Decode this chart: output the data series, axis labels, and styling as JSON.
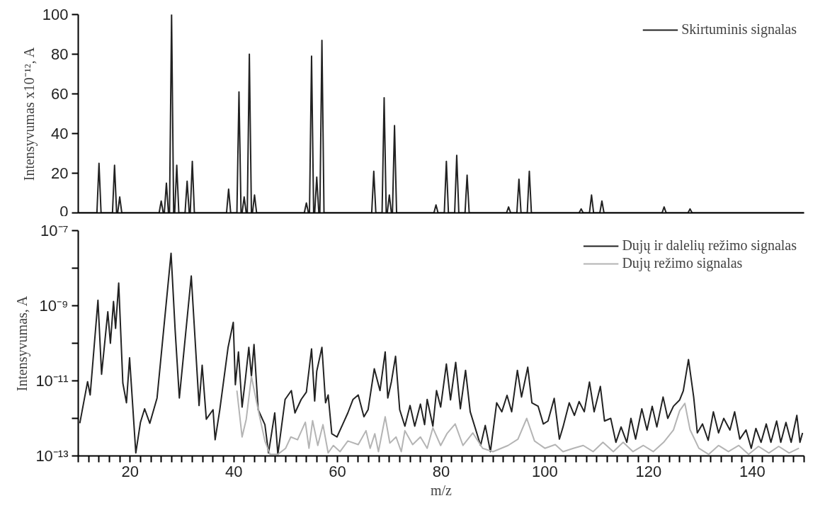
{
  "chart_data": [
    {
      "type": "line",
      "ylabel": "Intensyvumas x10⁻¹², A",
      "xlim": [
        10,
        150
      ],
      "ylim": [
        0,
        100
      ],
      "yticks": [
        0,
        20,
        40,
        60,
        80,
        100
      ],
      "tick_labels": "y",
      "legend": "top right",
      "series": [
        {
          "name": "Skirtuminis signalas",
          "color": "#222222",
          "x": [
            10,
            13.6,
            14,
            14.4,
            16.6,
            17,
            17.4,
            17.6,
            18,
            18.4,
            25.6,
            26,
            26.4,
            26.6,
            27,
            27.4,
            27.6,
            28,
            28.4,
            28.6,
            29,
            29.4,
            30.6,
            31,
            31.4,
            31.6,
            32,
            32.4,
            38.6,
            39,
            39.4,
            40.6,
            41,
            41.4,
            41.6,
            42,
            42.4,
            42.6,
            43,
            43.4,
            43.6,
            44,
            44.4,
            53.6,
            54,
            54.4,
            54.6,
            55,
            55.4,
            55.6,
            56,
            56.4,
            56.6,
            57,
            57.4,
            66.6,
            67,
            67.4,
            68.6,
            69,
            69.4,
            69.6,
            70,
            70.4,
            70.6,
            71,
            71.4,
            78.6,
            79,
            79.4,
            80.6,
            81,
            81.4,
            82.6,
            83,
            83.4,
            84.6,
            85,
            85.4,
            92.6,
            93,
            93.4,
            94.6,
            95,
            95.4,
            96.6,
            97,
            97.4,
            106.6,
            107,
            107.4,
            108.6,
            109,
            109.4,
            110.6,
            111,
            111.4,
            122.6,
            123,
            123.4,
            127.6,
            128,
            128.4,
            150
          ],
          "values": [
            0,
            0,
            25,
            0,
            0,
            24,
            0,
            0,
            8,
            0,
            0,
            6,
            0,
            0,
            15,
            0,
            0,
            100,
            0,
            0,
            24,
            0,
            0,
            16,
            0,
            0,
            26,
            0,
            0,
            12,
            0,
            0,
            61,
            0,
            0,
            8,
            0,
            0,
            80,
            0,
            0,
            9,
            0,
            0,
            5,
            0,
            0,
            79,
            0,
            0,
            18,
            0,
            0,
            87,
            0,
            0,
            21,
            0,
            0,
            58,
            0,
            0,
            9,
            0,
            0,
            44,
            0,
            0,
            4,
            0,
            0,
            26,
            0,
            0,
            29,
            0,
            0,
            19,
            0,
            0,
            3,
            0,
            0,
            17,
            0,
            0,
            21,
            0,
            0,
            2,
            0,
            0,
            9,
            0,
            0,
            6,
            0,
            0,
            3,
            0,
            0,
            2,
            0,
            0
          ]
        }
      ]
    },
    {
      "type": "line",
      "xlabel": "m/z",
      "ylabel": "Intensyvumas, A",
      "log": "y",
      "xlim": [
        10,
        150
      ],
      "ylim": [
        1e-13,
        1e-07
      ],
      "legend": "top right",
      "yticks": [
        {
          "value": 1e-07,
          "label": "10⁻⁷"
        },
        {
          "value": 1e-08,
          "label": null
        },
        {
          "value": 1e-09,
          "label": "10⁻⁹"
        },
        {
          "value": 1e-10,
          "label": null
        },
        {
          "value": 1e-11,
          "label": "10⁻¹¹"
        },
        {
          "value": 1e-12,
          "label": null
        },
        {
          "value": 1e-13,
          "label": "10⁻¹³"
        }
      ],
      "xticks": [
        {
          "value": 10,
          "label": null
        },
        {
          "value": 12,
          "label": null
        },
        {
          "value": 14,
          "label": null
        },
        {
          "value": 16,
          "label": null
        },
        {
          "value": 18,
          "label": null
        },
        20,
        {
          "value": 22,
          "label": null
        },
        {
          "value": 24,
          "label": null
        },
        {
          "value": 26,
          "label": null
        },
        {
          "value": 28,
          "label": null
        },
        {
          "value": 30,
          "label": null
        },
        {
          "value": 32,
          "label": null
        },
        {
          "value": 34,
          "label": null
        },
        {
          "value": 36,
          "label": null
        },
        {
          "value": 38,
          "label": null
        },
        40,
        {
          "value": 42,
          "label": null
        },
        {
          "value": 44,
          "label": null
        },
        {
          "value": 46,
          "label": null
        },
        {
          "value": 48,
          "label": null
        },
        {
          "value": 50,
          "label": null
        },
        {
          "value": 52,
          "label": null
        },
        {
          "value": 54,
          "label": null
        },
        {
          "value": 56,
          "label": null
        },
        {
          "value": 58,
          "label": null
        },
        60,
        {
          "value": 62,
          "label": null
        },
        {
          "value": 64,
          "label": null
        },
        {
          "value": 66,
          "label": null
        },
        {
          "value": 68,
          "label": null
        },
        {
          "value": 70,
          "label": null
        },
        {
          "value": 72,
          "label": null
        },
        {
          "value": 74,
          "label": null
        },
        {
          "value": 76,
          "label": null
        },
        {
          "value": 78,
          "label": null
        },
        80,
        {
          "value": 82,
          "label": null
        },
        {
          "value": 84,
          "label": null
        },
        {
          "value": 86,
          "label": null
        },
        {
          "value": 88,
          "label": null
        },
        {
          "value": 90,
          "label": null
        },
        {
          "value": 92,
          "label": null
        },
        {
          "value": 94,
          "label": null
        },
        {
          "value": 96,
          "label": null
        },
        {
          "value": 98,
          "label": null
        },
        100,
        {
          "value": 102,
          "label": null
        },
        {
          "value": 104,
          "label": null
        },
        {
          "value": 106,
          "label": null
        },
        {
          "value": 108,
          "label": null
        },
        {
          "value": 110,
          "label": null
        },
        {
          "value": 112,
          "label": null
        },
        {
          "value": 114,
          "label": null
        },
        {
          "value": 116,
          "label": null
        },
        {
          "value": 118,
          "label": null
        },
        120,
        {
          "value": 122,
          "label": null
        },
        {
          "value": 124,
          "label": null
        },
        {
          "value": 126,
          "label": null
        },
        {
          "value": 128,
          "label": null
        },
        {
          "value": 130,
          "label": null
        },
        {
          "value": 132,
          "label": null
        },
        {
          "value": 134,
          "label": null
        },
        {
          "value": 136,
          "label": null
        },
        {
          "value": 138,
          "label": null
        },
        140,
        {
          "value": 142,
          "label": null
        },
        {
          "value": 144,
          "label": null
        },
        {
          "value": 146,
          "label": null
        },
        {
          "value": 148,
          "label": null
        },
        {
          "value": 150,
          "label": null
        }
      ],
      "series": [
        {
          "name": "Dujų ir dalelių režimo signalas",
          "color": "#222222",
          "x": [
            10.3,
            11.8,
            12.3,
            13.8,
            14.5,
            15.7,
            16.2,
            16.8,
            17.2,
            17.8,
            18.6,
            19.3,
            19.9,
            21.1,
            22.0,
            22.8,
            23.8,
            25.2,
            27.9,
            28.7,
            29.5,
            31.8,
            33.3,
            33.9,
            34.7,
            36.0,
            36.4,
            37.3,
            38.9,
            39.9,
            40.3,
            40.9,
            41.6,
            42.2,
            42.9,
            43.4,
            43.9,
            44.7,
            46.0,
            46.7,
            47.9,
            48.5,
            49.9,
            51.1,
            51.8,
            53.0,
            54.0,
            55.0,
            55.6,
            56.0,
            57.0,
            57.7,
            58.2,
            58.9,
            59.9,
            61.1,
            62.0,
            63.0,
            64.0,
            65.1,
            65.9,
            67.1,
            68.2,
            69.2,
            69.7,
            70.4,
            71.2,
            72.0,
            73.0,
            74.0,
            74.9,
            76.0,
            76.8,
            77.3,
            78.4,
            79.1,
            79.9,
            81.0,
            81.8,
            82.8,
            83.7,
            84.7,
            85.6,
            87.6,
            88.5,
            89.5,
            90.7,
            91.7,
            92.7,
            93.6,
            94.7,
            95.5,
            96.7,
            97.5,
            98.7,
            99.7,
            100.6,
            101.8,
            102.8,
            103.5,
            104.7,
            105.7,
            106.6,
            107.6,
            108.6,
            109.5,
            110.7,
            111.5,
            112.7,
            113.7,
            114.7,
            115.8,
            116.6,
            117.5,
            118.7,
            119.7,
            120.7,
            121.6,
            122.8,
            123.7,
            124.8,
            126.0,
            126.7,
            127.7,
            128.7,
            129.4,
            130.4,
            131.5,
            132.5,
            133.5,
            134.5,
            135.7,
            136.6,
            137.6,
            138.8,
            139.8,
            140.7,
            141.7,
            142.7,
            143.6,
            144.7,
            145.5,
            146.5,
            147.5,
            148.6,
            149.2,
            149.7
          ],
          "values": [
            7.4e-13,
            9.5e-12,
            4.2e-12,
            1.4e-09,
            1.5e-11,
            6.9e-10,
            1e-10,
            1.3e-09,
            2.5e-10,
            4e-09,
            8.7e-12,
            2.6e-12,
            4.1e-11,
            1.2e-13,
            7.9e-13,
            1.8e-12,
            7.4e-13,
            3.5e-12,
            2.5e-08,
            2.1e-10,
            3.5e-12,
            6.2e-09,
            2.2e-12,
            2.6e-11,
            9.5e-13,
            1.7e-12,
            2.7e-13,
            1.7e-12,
            7.8e-11,
            3.6e-10,
            7.9e-12,
            5.9e-11,
            2e-12,
            1e-11,
            7.8e-11,
            1.3e-11,
            9.3e-11,
            1.7e-12,
            6.8e-13,
            1.2e-13,
            1.4e-12,
            1.1e-13,
            3.2e-12,
            5.5e-12,
            1.4e-12,
            3.2e-12,
            5e-12,
            7.1e-11,
            2.9e-12,
            1.8e-11,
            7.8e-11,
            2.6e-12,
            4.2e-12,
            3.9e-13,
            3.2e-13,
            7.4e-13,
            1.4e-12,
            3.2e-12,
            4.2e-12,
            1.1e-12,
            1.7e-12,
            2.1e-11,
            5.5e-12,
            5.9e-11,
            3.5e-12,
            9.5e-12,
            4.5e-11,
            1.7e-12,
            6.2e-13,
            2.2e-12,
            6.2e-13,
            2.4e-12,
            6.8e-13,
            3.2e-12,
            6.2e-13,
            5.5e-12,
            2e-12,
            2.8e-11,
            3.1e-12,
            3.1e-11,
            1.8e-12,
            1.9e-11,
            1.5e-12,
            1.9e-13,
            6.5e-13,
            1.3e-13,
            2.6e-12,
            1.5e-12,
            4.1e-12,
            1.5e-12,
            1.9e-11,
            3.7e-12,
            2.3e-11,
            2.6e-12,
            2.1e-12,
            7.1e-13,
            8.5e-13,
            3.4e-12,
            2.8e-13,
            5.9e-13,
            2.6e-12,
            1.2e-12,
            2.8e-12,
            1.5e-12,
            9.3e-12,
            1.5e-12,
            7.1e-12,
            8.5e-13,
            1e-12,
            2.3e-13,
            5.9e-13,
            2.3e-13,
            1e-12,
            2.8e-13,
            1.8e-12,
            4.9e-13,
            2.1e-12,
            5.9e-13,
            3.7e-12,
            1e-12,
            2.1e-12,
            3.1e-12,
            5.4e-12,
            3.7e-11,
            3.7e-12,
            4.1e-13,
            7.1e-13,
            2.6e-13,
            1.5e-12,
            4.1e-13,
            1e-12,
            4.9e-13,
            1.5e-12,
            2.8e-13,
            4.9e-13,
            1.6e-13,
            5.4e-13,
            2.3e-13,
            7.1e-13,
            2.3e-13,
            8.5e-13,
            2.3e-13,
            7.8e-13,
            2.3e-13,
            1.2e-12,
            2.3e-13,
            4.1e-13
          ]
        },
        {
          "name": "Dujų režimo signalas",
          "color": "#b4b4b4",
          "x": [
            40.6,
            41.6,
            42.4,
            43.4,
            44.7,
            46,
            47,
            48.5,
            50,
            51,
            52.3,
            53.8,
            54.5,
            55.2,
            56.2,
            57.2,
            58.2,
            59.2,
            60.5,
            62,
            64,
            65.5,
            66.3,
            67.2,
            67.9,
            69.2,
            70.1,
            71.3,
            72.3,
            73,
            74.5,
            76,
            77.3,
            78.4,
            79.9,
            81.1,
            82.7,
            84.2,
            86.1,
            88,
            90,
            92.9,
            94.8,
            96.5,
            98,
            100,
            102,
            103.5,
            105.5,
            107.4,
            109.3,
            111.2,
            113.2,
            115.1,
            117,
            119,
            120.9,
            122.9,
            124.8,
            126,
            127,
            128,
            129.7,
            131.6,
            133.5,
            135.4,
            137.4,
            139.3,
            141.2,
            143.2,
            145.1,
            147.1,
            149
          ],
          "values": [
            5.5e-12,
            3.2e-13,
            9.5e-13,
            1.3e-11,
            1.7e-12,
            2.5e-13,
            1.1e-13,
            1.1e-13,
            1.6e-13,
            3.2e-13,
            2.7e-13,
            7.9e-13,
            1.6e-13,
            8.7e-13,
            1.9e-13,
            6.8e-13,
            1.2e-13,
            1.9e-13,
            1.3e-13,
            2.5e-13,
            2e-13,
            4.7e-13,
            1.6e-13,
            3.9e-13,
            1.3e-13,
            1.1e-12,
            2.2e-13,
            3.2e-13,
            1.3e-13,
            4.7e-13,
            2e-13,
            3.2e-13,
            1.6e-13,
            5.6e-13,
            1.9e-13,
            3.9e-13,
            7.1e-13,
            1.9e-13,
            4.1e-13,
            1.6e-13,
            1.3e-13,
            1.9e-13,
            2.8e-13,
            1e-12,
            2.5e-13,
            1.6e-13,
            2e-13,
            1.3e-13,
            1.6e-13,
            1.9e-13,
            1.3e-13,
            2.3e-13,
            1.3e-13,
            2.3e-13,
            1.3e-13,
            1.9e-13,
            1.3e-13,
            2.3e-13,
            4.9e-13,
            1.6e-12,
            2.5e-12,
            5e-13,
            1.6e-13,
            1.1e-13,
            1.9e-13,
            1.3e-13,
            1.9e-13,
            1.1e-13,
            1.8e-13,
            1.2e-13,
            1.8e-13,
            1.2e-13,
            1.6e-13
          ]
        }
      ]
    }
  ]
}
